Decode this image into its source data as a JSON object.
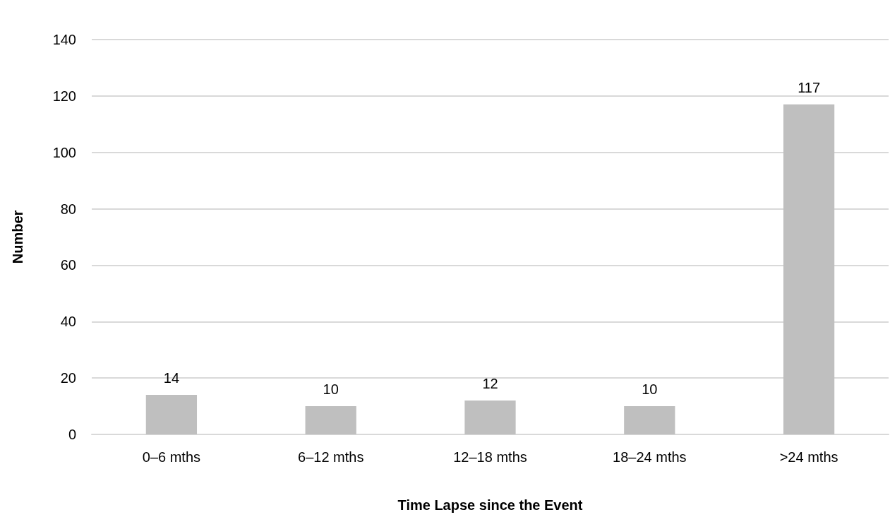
{
  "chart_data": {
    "type": "bar",
    "xlabel": "Time Lapse since the Event",
    "ylabel": "Number",
    "categories": [
      "0–6 mths",
      "6–12 mths",
      "12–18 mths",
      "18–24 mths",
      ">24 mths"
    ],
    "values": [
      14,
      10,
      12,
      10,
      117
    ],
    "color": "#bfbfbf",
    "data_labels": true,
    "ylim": [
      0,
      140
    ],
    "yticks": [
      0,
      20,
      40,
      60,
      80,
      100,
      120,
      140
    ],
    "grid": "y"
  }
}
